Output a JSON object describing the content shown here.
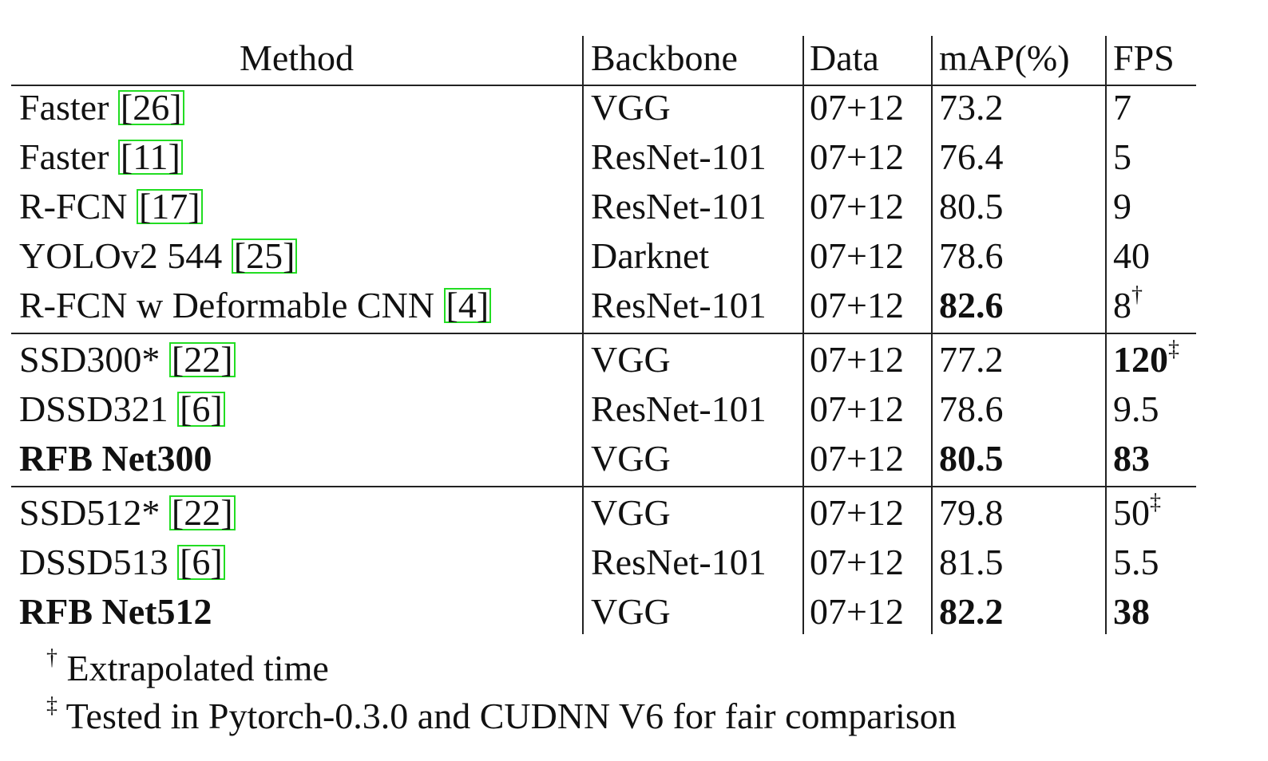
{
  "table": {
    "columns": [
      "Method",
      "Backbone",
      "Data",
      "mAP(%)",
      "FPS"
    ],
    "groups": [
      {
        "rows": [
          [
            {
              "text": "Faster",
              "cite": "[26]"
            },
            {
              "text": "VGG"
            },
            {
              "text": "07+12"
            },
            {
              "text": "73.2"
            },
            {
              "text": "7"
            }
          ],
          [
            {
              "text": "Faster",
              "cite": "[11]"
            },
            {
              "text": "ResNet-101"
            },
            {
              "text": "07+12"
            },
            {
              "text": "76.4"
            },
            {
              "text": "5"
            }
          ],
          [
            {
              "text": "R-FCN",
              "cite": "[17]"
            },
            {
              "text": "ResNet-101"
            },
            {
              "text": "07+12"
            },
            {
              "text": "80.5"
            },
            {
              "text": "9"
            }
          ],
          [
            {
              "text": "YOLOv2 544",
              "cite": "[25]"
            },
            {
              "text": "Darknet"
            },
            {
              "text": "07+12"
            },
            {
              "text": "78.6"
            },
            {
              "text": "40"
            }
          ],
          [
            {
              "text": "R-FCN w Deformable CNN",
              "cite": "[4]"
            },
            {
              "text": "ResNet-101"
            },
            {
              "text": "07+12"
            },
            {
              "text": "82.6",
              "bold": true
            },
            {
              "text": "8",
              "sup": "†"
            }
          ]
        ]
      },
      {
        "rows": [
          [
            {
              "text": "SSD300*",
              "cite": "[22]"
            },
            {
              "text": "VGG"
            },
            {
              "text": "07+12"
            },
            {
              "text": "77.2"
            },
            {
              "text": "120",
              "bold": true,
              "sup": "‡"
            }
          ],
          [
            {
              "text": "DSSD321",
              "cite": "[6]"
            },
            {
              "text": "ResNet-101"
            },
            {
              "text": "07+12"
            },
            {
              "text": "78.6"
            },
            {
              "text": "9.5"
            }
          ],
          [
            {
              "text": "RFB Net300",
              "bold": true
            },
            {
              "text": "VGG"
            },
            {
              "text": "07+12"
            },
            {
              "text": "80.5",
              "bold": true
            },
            {
              "text": "83",
              "bold": true
            }
          ]
        ]
      },
      {
        "rows": [
          [
            {
              "text": "SSD512*",
              "cite": "[22]"
            },
            {
              "text": "VGG"
            },
            {
              "text": "07+12"
            },
            {
              "text": "79.8"
            },
            {
              "text": "50",
              "sup": "‡"
            }
          ],
          [
            {
              "text": "DSSD513",
              "cite": "[6]"
            },
            {
              "text": "ResNet-101"
            },
            {
              "text": "07+12"
            },
            {
              "text": "81.5"
            },
            {
              "text": "5.5"
            }
          ],
          [
            {
              "text": "RFB Net512",
              "bold": true
            },
            {
              "text": "VGG"
            },
            {
              "text": "07+12"
            },
            {
              "text": "82.2",
              "bold": true
            },
            {
              "text": "38",
              "bold": true
            }
          ]
        ]
      }
    ],
    "footnotes": [
      {
        "mark": "†",
        "text": "Extrapolated time"
      },
      {
        "mark": "‡",
        "text": "Tested in Pytorch-0.3.0 and CUDNN V6 for fair comparison"
      }
    ]
  }
}
